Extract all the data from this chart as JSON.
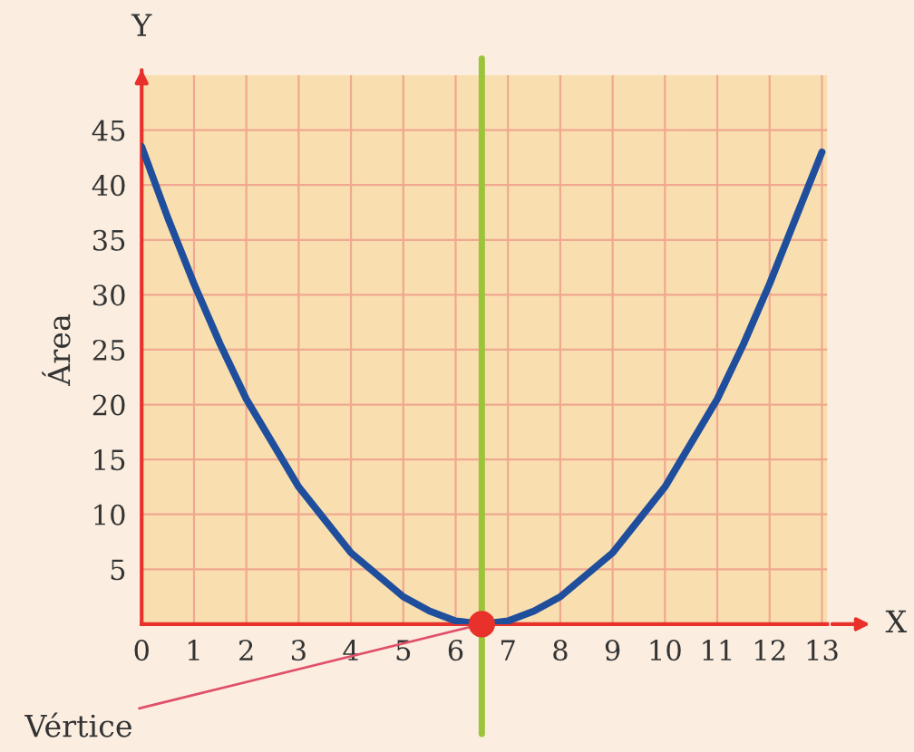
{
  "chart_data": {
    "type": "line",
    "xlabel": "X",
    "ylabel": "Área",
    "annotations": [
      "Y",
      {
        "text": "Vértice",
        "x": 6.5,
        "y": 0
      }
    ],
    "series": [
      {
        "color": "#1f4e9c",
        "x": [
          0,
          0.5,
          1,
          1.5,
          2,
          2.5,
          3,
          3.5,
          4,
          4.5,
          5,
          5.5,
          6,
          6.5,
          7,
          7.5,
          8,
          8.5,
          9,
          9.5,
          10,
          10.5,
          11,
          11.5,
          12,
          12.5,
          13
        ],
        "values": [
          43.5,
          37,
          31,
          25.5,
          20.5,
          16.5,
          12.5,
          9.5,
          6.5,
          4.5,
          2.5,
          1.2,
          0.3,
          0,
          0.3,
          1.2,
          2.5,
          4.5,
          6.5,
          9.5,
          12.5,
          16.5,
          20.5,
          25.5,
          31,
          37,
          43
        ]
      },
      {
        "type": "scatter",
        "marker": "circle",
        "color": "#e8312a",
        "x": [
          6.5
        ],
        "values": [
          0
        ]
      }
    ],
    "ref_lines": [
      {
        "axis": "x",
        "value": 6.5,
        "color": "#9bc43a"
      }
    ],
    "xlim": [
      0,
      13.1
    ],
    "ylim": [
      0,
      50
    ],
    "xticks": [
      0,
      1,
      2,
      3,
      4,
      5,
      6,
      7,
      8,
      9,
      10,
      11,
      12,
      13
    ],
    "yticks": [
      5,
      10,
      15,
      20,
      25,
      30,
      35,
      40,
      45
    ],
    "grid": true,
    "line_style": "solid",
    "legend": false
  }
}
